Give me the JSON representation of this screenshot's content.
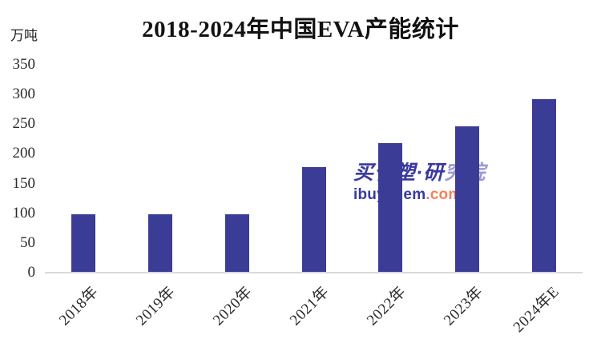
{
  "page": {
    "background": "#ffffff"
  },
  "chart_data": {
    "type": "bar",
    "title": "2018-2024年中国EVA产能统计",
    "ylabel": "万吨",
    "xlabel": "",
    "categories": [
      "2018年",
      "2019年",
      "2020年",
      "2021年",
      "2022年",
      "2023年",
      "2024年E"
    ],
    "values": [
      97,
      97,
      97,
      177,
      217,
      246,
      292
    ],
    "ylim": [
      0,
      350
    ],
    "yticks": [
      0,
      50,
      100,
      150,
      200,
      250,
      300,
      350
    ],
    "grid": false,
    "legend_position": "none",
    "bar_color": "#3b3c96",
    "axis_line_color": "#d9d9d9",
    "text_color": "#2b2b2b"
  },
  "watermark": {
    "brand_cn_solid": "买化塑·研",
    "brand_cn_light": "究院",
    "brand_domain_name": "ibuychem",
    "brand_domain_tld": ".com",
    "blue": "#3939a0",
    "light_blue": "#9b9bd0",
    "orange": "#f3805c"
  }
}
